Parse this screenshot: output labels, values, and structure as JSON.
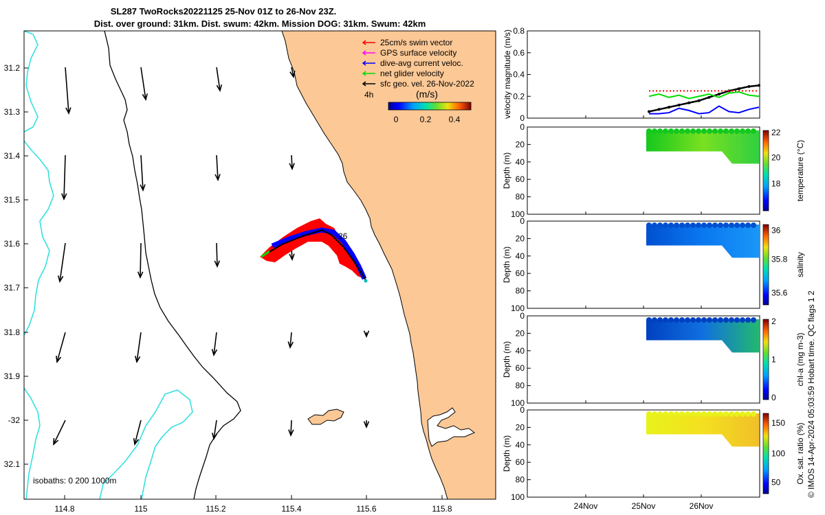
{
  "header": {
    "title_line1": "SL287 TwoRocks20221125 25-Nov 01Z to 26-Nov 23Z.",
    "title_line2": "Dist. over ground: 31km. Dist. swum: 42km. Mission DOG: 31km. Swum: 42km"
  },
  "map": {
    "legend": [
      {
        "label": "25cm/s swim vector",
        "color": "#ff0000"
      },
      {
        "label": "GPS surface velocity",
        "color": "#ff00ff"
      },
      {
        "label": "dive-avg current veloc.",
        "color": "#0000ff"
      },
      {
        "label": "net glider velocity",
        "color": "#00dd00"
      },
      {
        "label": "sfc geo. vel. 26-Nov-2022",
        "color": "#000000"
      }
    ],
    "time_label": "4h",
    "colorbar_unit": "(m/s)",
    "colorbar_ticks": [
      "0",
      "0.2",
      "0.4"
    ],
    "isobath_label": "isobaths: 0   200  1000m",
    "track_label": "26",
    "lon_ticks": [
      "114.8",
      "115",
      "115.2",
      "115.4",
      "115.6",
      "115.8"
    ],
    "lat_ticks": [
      "31.2",
      "31.3",
      "31.4",
      "31.5",
      "31.6",
      "31.7",
      "31.8",
      "31.9",
      "-32",
      "32.1"
    ],
    "colors": {
      "land": "#fbc896",
      "isobath_200": "#000000",
      "isobath_1000": "#33e0e0"
    }
  },
  "side_panels": {
    "velocity": {
      "ylabel": "velocity magnitude (m/s)",
      "yticks": [
        "0",
        "0.2",
        "0.4",
        "0.6",
        "0.8"
      ]
    },
    "depth_label": "Depth (m)",
    "depth_ticks": [
      "0",
      "20",
      "40",
      "60",
      "80",
      "100"
    ],
    "temperature": {
      "label": "temperature (°C)",
      "cticks": [
        "18",
        "20",
        "22"
      ]
    },
    "salinity": {
      "label": "salinity",
      "cticks": [
        "35.6",
        "35.8",
        "36"
      ]
    },
    "chla": {
      "label": "chl-a (mg m-3)",
      "cticks": [
        "0",
        "1",
        "2"
      ]
    },
    "oxygen": {
      "label": "Ox. sat. ratio (%)",
      "cticks": [
        "50",
        "100",
        "150"
      ]
    },
    "time_ticks": [
      "24Nov",
      "25Nov",
      "26Nov"
    ],
    "footer": "© IMOS 14-Apr-2024 05:03:59 Hobart time. QC flags 1  2"
  },
  "chart_data": [
    {
      "type": "scatter",
      "title": "SL287 TwoRocks20221125 25-Nov 01Z to 26-Nov 23Z.",
      "xlabel": "",
      "ylabel": "",
      "xlim": [
        114.68,
        115.95
      ],
      "ylim": [
        32.18,
        31.13
      ],
      "series": [
        {
          "name": "net glider velocity",
          "x": [
            115.33,
            115.4,
            115.48,
            115.55,
            115.6
          ],
          "y": [
            31.63,
            31.61,
            31.575,
            31.62,
            31.685
          ]
        }
      ]
    },
    {
      "type": "line",
      "ylabel": "velocity magnitude (m/s)",
      "ylim": [
        0,
        0.8
      ],
      "x_ticks": [
        "24Nov",
        "25Nov",
        "26Nov"
      ],
      "series": [
        {
          "name": "sfc geo. vel.",
          "color": "#000000",
          "values": [
            0.06,
            0.08,
            0.1,
            0.12,
            0.14,
            0.16,
            0.19,
            0.22,
            0.25,
            0.27,
            0.29,
            0.3
          ]
        },
        {
          "name": "GPS surface velocity",
          "color": "#ff0000",
          "values": [
            0.25,
            0.25,
            0.25,
            0.25,
            0.25,
            0.25,
            0.25,
            0.25,
            0.25,
            0.25,
            0.25,
            0.25
          ]
        },
        {
          "name": "net glider velocity",
          "color": "#00dd00",
          "values": [
            0.2,
            0.22,
            0.19,
            0.21,
            0.18,
            0.2,
            0.22,
            0.19,
            0.23,
            0.24,
            0.21,
            0.2
          ]
        },
        {
          "name": "dive-avg current veloc.",
          "color": "#0000ff",
          "values": [
            0.04,
            0.04,
            0.05,
            0.09,
            0.07,
            0.04,
            0.05,
            0.11,
            0.06,
            0.05,
            0.08,
            0.1
          ]
        }
      ]
    }
  ]
}
